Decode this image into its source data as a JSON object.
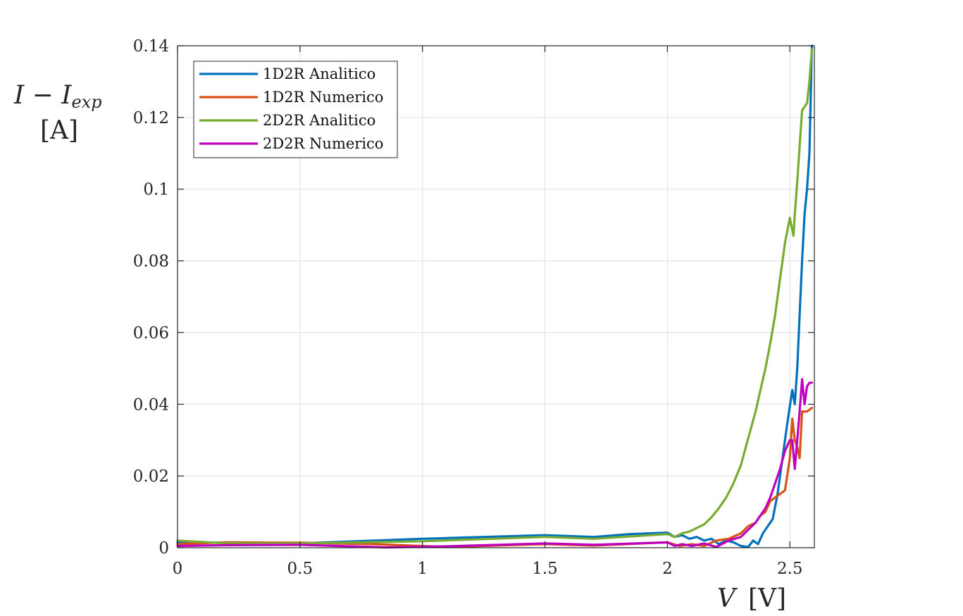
{
  "chart_data": {
    "type": "line",
    "xlabel": {
      "main": "V",
      "unit": "[V]"
    },
    "ylabel": {
      "main": "I − I",
      "sub": "exp",
      "unit": "[A]"
    },
    "xlim": [
      0,
      2.6
    ],
    "ylim": [
      0,
      0.14
    ],
    "xticks": [
      {
        "value": 0,
        "label": "0"
      },
      {
        "value": 0.5,
        "label": "0.5"
      },
      {
        "value": 1,
        "label": "1"
      },
      {
        "value": 1.5,
        "label": "1.5"
      },
      {
        "value": 2,
        "label": "2"
      },
      {
        "value": 2.5,
        "label": "2.5"
      }
    ],
    "yticks": [
      {
        "value": 0,
        "label": "0"
      },
      {
        "value": 0.02,
        "label": "0.02"
      },
      {
        "value": 0.04,
        "label": "0.04"
      },
      {
        "value": 0.06,
        "label": "0.06"
      },
      {
        "value": 0.08,
        "label": "0.08"
      },
      {
        "value": 0.1,
        "label": "0.1"
      },
      {
        "value": 0.12,
        "label": "0.12"
      },
      {
        "value": 0.14,
        "label": "0.14"
      }
    ],
    "grid": true,
    "legend_position": "top-left",
    "series": [
      {
        "name": "1D2R Analitico",
        "color": "#0072BD",
        "x": [
          0,
          0.5,
          1.0,
          1.5,
          1.7,
          1.85,
          2.0,
          2.03,
          2.06,
          2.09,
          2.12,
          2.15,
          2.18,
          2.21,
          2.24,
          2.27,
          2.3,
          2.33,
          2.35,
          2.37,
          2.39,
          2.41,
          2.43,
          2.45,
          2.47,
          2.49,
          2.51,
          2.52,
          2.53,
          2.54,
          2.55,
          2.56,
          2.57,
          2.58,
          2.59
        ],
        "y": [
          0.0015,
          0.0012,
          0.0025,
          0.0035,
          0.003,
          0.0038,
          0.0042,
          0.003,
          0.0035,
          0.0025,
          0.003,
          0.002,
          0.0025,
          0.001,
          0.002,
          0.0015,
          0.0005,
          0.0002,
          0.002,
          0.001,
          0.004,
          0.006,
          0.008,
          0.015,
          0.025,
          0.035,
          0.044,
          0.04,
          0.05,
          0.065,
          0.08,
          0.093,
          0.1,
          0.11,
          0.14
        ]
      },
      {
        "name": "1D2R Numerico",
        "color": "#D95319",
        "x": [
          0,
          0.2,
          0.5,
          0.8,
          1.1,
          1.5,
          1.7,
          2.0,
          2.05,
          2.1,
          2.15,
          2.2,
          2.25,
          2.3,
          2.33,
          2.36,
          2.38,
          2.4,
          2.42,
          2.44,
          2.46,
          2.48,
          2.5,
          2.51,
          2.52,
          2.53,
          2.54,
          2.55,
          2.56,
          2.57,
          2.59
        ],
        "y": [
          0.001,
          0.0015,
          0.0014,
          0.001,
          0.0002,
          0.001,
          0.0006,
          0.0015,
          0.0005,
          0.001,
          0.0005,
          0.002,
          0.0025,
          0.004,
          0.006,
          0.007,
          0.009,
          0.01,
          0.013,
          0.014,
          0.015,
          0.016,
          0.025,
          0.036,
          0.03,
          0.028,
          0.025,
          0.038,
          0.038,
          0.038,
          0.039
        ]
      },
      {
        "name": "2D2R Analitico",
        "color": "#77AC30",
        "x": [
          0,
          0.2,
          0.5,
          1.0,
          1.5,
          1.7,
          2.0,
          2.03,
          2.06,
          2.09,
          2.12,
          2.15,
          2.18,
          2.21,
          2.24,
          2.27,
          2.3,
          2.32,
          2.34,
          2.36,
          2.38,
          2.4,
          2.42,
          2.44,
          2.46,
          2.48,
          2.5,
          2.515,
          2.52,
          2.53,
          2.54,
          2.55,
          2.56,
          2.57,
          2.58,
          2.59
        ],
        "y": [
          0.002,
          0.0012,
          0.0012,
          0.0018,
          0.003,
          0.0025,
          0.0038,
          0.003,
          0.004,
          0.0045,
          0.0055,
          0.0065,
          0.0085,
          0.011,
          0.014,
          0.018,
          0.023,
          0.028,
          0.033,
          0.038,
          0.044,
          0.05,
          0.057,
          0.065,
          0.075,
          0.085,
          0.092,
          0.087,
          0.093,
          0.102,
          0.112,
          0.122,
          0.123,
          0.124,
          0.13,
          0.139
        ]
      },
      {
        "name": "2D2R Numerico",
        "color": "#BF00BF",
        "x": [
          0,
          0.2,
          0.5,
          0.85,
          1.1,
          1.5,
          1.7,
          2.0,
          2.03,
          2.06,
          2.1,
          2.15,
          2.2,
          2.25,
          2.3,
          2.33,
          2.36,
          2.38,
          2.4,
          2.42,
          2.44,
          2.46,
          2.48,
          2.5,
          2.51,
          2.52,
          2.53,
          2.54,
          2.55,
          2.56,
          2.57,
          2.58,
          2.59
        ],
        "y": [
          0.0005,
          0.0007,
          0.0008,
          0.0001,
          0.0004,
          0.0012,
          0.0008,
          0.0015,
          0.0005,
          0.001,
          0.0005,
          0.0012,
          0.0002,
          0.002,
          0.003,
          0.005,
          0.007,
          0.009,
          0.011,
          0.014,
          0.018,
          0.022,
          0.027,
          0.03,
          0.03,
          0.022,
          0.03,
          0.038,
          0.047,
          0.04,
          0.045,
          0.046,
          0.046
        ]
      }
    ]
  }
}
